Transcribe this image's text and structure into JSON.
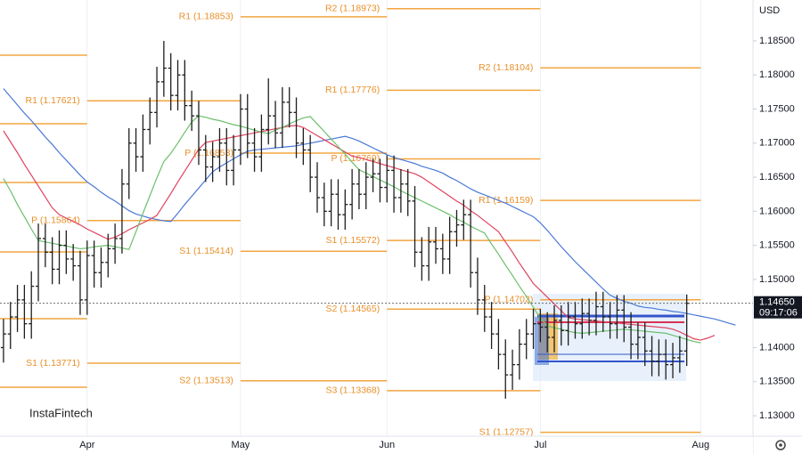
{
  "chart_data": {
    "type": "ohlc",
    "currency": "USD",
    "watermark": "InstaFintech",
    "bar_color": "#1e1e1e",
    "pivot_color": "#f2a540",
    "pivot_label_color": "#e8902a",
    "grid": true,
    "categories": [
      null,
      null,
      null,
      null,
      null,
      null,
      null,
      null,
      null,
      null,
      null,
      null,
      "Apr",
      null,
      null,
      null,
      null,
      null,
      null,
      null,
      null,
      null,
      null,
      null,
      null,
      null,
      null,
      null,
      null,
      null,
      null,
      null,
      null,
      null,
      "May",
      null,
      null,
      null,
      null,
      null,
      null,
      null,
      null,
      null,
      null,
      null,
      null,
      null,
      null,
      null,
      null,
      null,
      null,
      null,
      null,
      "Jun",
      null,
      null,
      null,
      null,
      null,
      null,
      null,
      null,
      null,
      null,
      null,
      null,
      null,
      null,
      null,
      null,
      null,
      null,
      null,
      null,
      null,
      "Jul",
      null,
      null,
      null,
      null,
      null,
      null,
      null,
      null,
      null,
      null,
      null,
      null,
      null,
      null,
      null,
      null,
      null,
      null,
      null,
      null,
      null,
      null,
      "Aug",
      null,
      null,
      null,
      null,
      null,
      null,
      null
    ],
    "open": [
      1.14,
      1.142,
      1.1445,
      1.147,
      1.1435,
      1.149,
      1.156,
      1.154,
      1.1515,
      1.155,
      1.153,
      1.152,
      1.147,
      1.1535,
      1.151,
      1.1525,
      1.1545,
      1.156,
      1.164,
      1.17,
      1.168,
      1.172,
      1.1745,
      1.179,
      1.181,
      1.177,
      1.18,
      1.1755,
      1.174,
      1.169,
      1.1665,
      1.168,
      1.17,
      1.166,
      1.169,
      1.175,
      1.17,
      1.168,
      1.172,
      1.174,
      1.1715,
      1.176,
      1.1745,
      1.17,
      1.169,
      1.165,
      1.162,
      1.16,
      1.1625,
      1.1595,
      1.161,
      1.164,
      1.1625,
      1.165,
      1.1655,
      1.1635,
      1.166,
      1.162,
      1.164,
      1.1615,
      1.154,
      1.152,
      1.1555,
      1.1545,
      1.153,
      1.157,
      1.158,
      1.1595,
      1.151,
      1.147,
      1.1445,
      1.142,
      1.139,
      1.136,
      1.1375,
      1.1405,
      1.142,
      1.1435,
      1.143,
      1.1415,
      1.144,
      1.1425,
      1.1445,
      1.1435,
      1.145,
      1.144,
      1.146,
      1.1445,
      1.1435,
      1.1455,
      1.143,
      1.1405,
      1.1415,
      1.1395,
      1.138,
      1.139,
      1.1375,
      1.1385,
      1.1395,
      null,
      null,
      null,
      null,
      null,
      null,
      null,
      null,
      null
    ],
    "high": [
      1.1442,
      1.1467,
      1.1492,
      1.1492,
      1.1512,
      1.1582,
      1.1582,
      1.1562,
      1.1572,
      1.1572,
      1.1552,
      1.1542,
      1.1557,
      1.1557,
      1.1547,
      1.1567,
      1.1582,
      1.1662,
      1.1722,
      1.1722,
      1.1742,
      1.1767,
      1.1812,
      1.185,
      1.1832,
      1.1822,
      1.1822,
      1.1777,
      1.1762,
      1.1712,
      1.1702,
      1.1722,
      1.1722,
      1.1712,
      1.1772,
      1.1772,
      1.1722,
      1.1742,
      1.1795,
      1.1762,
      1.1782,
      1.1782,
      1.1767,
      1.1722,
      1.1712,
      1.1672,
      1.1642,
      1.1647,
      1.1647,
      1.1632,
      1.1662,
      1.1662,
      1.1672,
      1.1677,
      1.1677,
      1.1682,
      1.1682,
      1.1662,
      1.1662,
      1.1637,
      1.1562,
      1.1577,
      1.1577,
      1.1567,
      1.1592,
      1.1602,
      1.1617,
      1.1617,
      1.1532,
      1.1492,
      1.1467,
      1.1442,
      1.1412,
      1.1397,
      1.1427,
      1.1442,
      1.1457,
      1.1457,
      1.1452,
      1.1462,
      1.1462,
      1.1467,
      1.1467,
      1.1472,
      1.1472,
      1.1482,
      1.1482,
      1.1467,
      1.1477,
      1.1477,
      1.1452,
      1.1437,
      1.1437,
      1.1417,
      1.1412,
      1.1412,
      1.1407,
      1.1417,
      1.1478,
      null,
      null,
      null,
      null,
      null,
      null,
      null,
      null,
      null
    ],
    "low": [
      1.1378,
      1.1398,
      1.1423,
      1.1413,
      1.1413,
      1.1468,
      1.1518,
      1.1493,
      1.1493,
      1.1508,
      1.1498,
      1.1448,
      1.1448,
      1.1488,
      1.1488,
      1.1503,
      1.1523,
      1.1538,
      1.1618,
      1.1658,
      1.1658,
      1.1698,
      1.1723,
      1.1768,
      1.1748,
      1.1748,
      1.1733,
      1.1718,
      1.1668,
      1.1643,
      1.1643,
      1.1658,
      1.1638,
      1.1638,
      1.1668,
      1.1678,
      1.1658,
      1.1658,
      1.1698,
      1.1693,
      1.1693,
      1.1723,
      1.1678,
      1.1668,
      1.1628,
      1.1598,
      1.1578,
      1.1578,
      1.1573,
      1.1573,
      1.1588,
      1.1603,
      1.1603,
      1.1628,
      1.1613,
      1.1613,
      1.1598,
      1.1598,
      1.1593,
      1.1518,
      1.1498,
      1.1498,
      1.1523,
      1.1508,
      1.1508,
      1.1548,
      1.1558,
      1.1488,
      1.1448,
      1.1423,
      1.1398,
      1.1368,
      1.1325,
      1.1338,
      1.1353,
      1.1383,
      1.1398,
      1.1408,
      1.1393,
      1.1393,
      1.1403,
      1.1403,
      1.1413,
      1.1413,
      1.1418,
      1.1418,
      1.1423,
      1.1413,
      1.1413,
      1.1408,
      1.1383,
      1.1383,
      1.1373,
      1.1358,
      1.1358,
      1.1353,
      1.1355,
      1.1363,
      1.1373,
      null,
      null,
      null,
      null,
      null,
      null,
      null,
      null,
      null
    ],
    "close": [
      1.142,
      1.1445,
      1.147,
      1.1435,
      1.149,
      1.156,
      1.154,
      1.1515,
      1.155,
      1.153,
      1.152,
      1.147,
      1.1535,
      1.151,
      1.1525,
      1.1545,
      1.156,
      1.164,
      1.17,
      1.168,
      1.172,
      1.1745,
      1.179,
      1.181,
      1.177,
      1.18,
      1.1755,
      1.174,
      1.169,
      1.1665,
      1.168,
      1.17,
      1.166,
      1.169,
      1.175,
      1.17,
      1.168,
      1.172,
      1.174,
      1.1715,
      1.176,
      1.1745,
      1.17,
      1.169,
      1.165,
      1.162,
      1.16,
      1.1625,
      1.1595,
      1.161,
      1.164,
      1.1625,
      1.165,
      1.1655,
      1.1635,
      1.166,
      1.162,
      1.164,
      1.1615,
      1.154,
      1.152,
      1.1555,
      1.1545,
      1.153,
      1.157,
      1.158,
      1.1595,
      1.151,
      1.147,
      1.1445,
      1.142,
      1.139,
      1.136,
      1.1375,
      1.1405,
      1.142,
      1.1435,
      1.143,
      1.1415,
      1.144,
      1.1425,
      1.1445,
      1.1435,
      1.145,
      1.144,
      1.146,
      1.1445,
      1.1435,
      1.1455,
      1.143,
      1.1405,
      1.1415,
      1.1395,
      1.138,
      1.139,
      1.1375,
      1.1385,
      1.1395,
      1.1465,
      null,
      null,
      null,
      null,
      null,
      null,
      null,
      null,
      null
    ],
    "moving_averages": [
      {
        "color": "#4a78d6",
        "values": [
          1.178,
          1.1768,
          1.1756,
          1.1744,
          1.1733,
          1.1721,
          1.1709,
          1.1698,
          1.1686,
          1.1675,
          1.1664,
          1.1653,
          1.1643,
          1.1636,
          1.1628,
          1.1621,
          1.1615,
          1.1608,
          1.1601,
          1.1596,
          1.1593,
          1.159,
          1.1588,
          1.1586,
          1.1585,
          1.1597,
          1.161,
          1.1622,
          1.1634,
          1.1646,
          1.1658,
          1.1665,
          1.1671,
          1.1677,
          1.1683,
          1.1688,
          1.169,
          1.1691,
          1.1692,
          1.1693,
          1.1694,
          1.1695,
          1.1696,
          1.1698,
          1.17,
          1.1702,
          1.1704,
          1.1706,
          1.1708,
          1.171,
          1.1707,
          1.1703,
          1.1698,
          1.1693,
          1.1688,
          1.1683,
          1.1679,
          1.1676,
          1.1673,
          1.167,
          1.1666,
          1.1663,
          1.166,
          1.1656,
          1.165,
          1.1645,
          1.1639,
          1.1633,
          1.1628,
          1.1624,
          1.162,
          1.1616,
          1.1612,
          1.1607,
          1.1602,
          1.1597,
          1.1592,
          1.1583,
          1.1572,
          1.156,
          1.1548,
          1.1537,
          1.1526,
          1.1516,
          1.1506,
          1.1496,
          1.1486,
          1.1477,
          1.1472,
          1.1468,
          1.1465,
          1.1461,
          1.1459,
          1.1458,
          1.1456,
          1.1455,
          1.1453,
          1.1452,
          1.145,
          1.1448,
          1.1446,
          1.1444,
          1.1442,
          1.1439,
          1.1436,
          1.1433,
          null,
          null
        ]
      },
      {
        "color": "#e0435e",
        "values": [
          1.1718,
          1.1702,
          1.1686,
          1.1669,
          1.1653,
          1.1637,
          1.1621,
          1.1605,
          1.1595,
          1.159,
          1.1585,
          1.158,
          1.1574,
          1.1569,
          1.1564,
          1.1559,
          1.1562,
          1.1567,
          1.1573,
          1.1578,
          1.1583,
          1.1588,
          1.1594,
          1.161,
          1.1626,
          1.1643,
          1.1659,
          1.1675,
          1.1691,
          1.1701,
          1.1703,
          1.1705,
          1.1707,
          1.1709,
          1.1711,
          1.1713,
          1.1715,
          1.1717,
          1.1719,
          1.1721,
          1.1723,
          1.1725,
          1.1726,
          1.1723,
          1.1717,
          1.1711,
          1.1705,
          1.1699,
          1.1693,
          1.1687,
          1.1681,
          1.1679,
          1.1676,
          1.1673,
          1.167,
          1.1667,
          1.1664,
          1.1661,
          1.1658,
          1.1655,
          1.165,
          1.1643,
          1.1636,
          1.1629,
          1.1622,
          1.1615,
          1.1609,
          1.1601,
          1.1594,
          1.1586,
          1.1578,
          1.157,
          1.1555,
          1.154,
          1.1524,
          1.1509,
          1.1494,
          1.1484,
          1.1474,
          1.1464,
          1.1454,
          1.1444,
          1.1442,
          1.1441,
          1.144,
          1.1439,
          1.1438,
          1.1437,
          1.1436,
          1.1435,
          1.1434,
          1.1433,
          1.1432,
          1.1431,
          1.143,
          1.1429,
          1.1427,
          1.1423,
          1.1418,
          1.1413,
          1.1411,
          1.1414,
          1.1418,
          null,
          null,
          null,
          null,
          null
        ]
      },
      {
        "color": "#6cbf6c",
        "values": [
          1.1648,
          1.163,
          1.161,
          1.1592,
          1.1574,
          1.1557,
          1.1555,
          1.1553,
          1.1551,
          1.1549,
          1.1547,
          1.1545,
          1.1546,
          1.1548,
          1.1549,
          1.155,
          1.1548,
          1.1546,
          1.1544,
          1.157,
          1.1597,
          1.1623,
          1.1649,
          1.1673,
          1.1685,
          1.17,
          1.1716,
          1.1731,
          1.174,
          1.1738,
          1.1735,
          1.1733,
          1.173,
          1.1727,
          1.1725,
          1.1722,
          1.1719,
          1.1716,
          1.1714,
          1.1719,
          1.1723,
          1.1728,
          1.1733,
          1.1737,
          1.1739,
          1.1728,
          1.1717,
          1.1706,
          1.1695,
          1.1684,
          1.1672,
          1.1661,
          1.1656,
          1.1651,
          1.1646,
          1.1641,
          1.1636,
          1.163,
          1.1625,
          1.162,
          1.1615,
          1.161,
          1.1605,
          1.16,
          1.1595,
          1.1589,
          1.1584,
          1.1578,
          1.1573,
          1.1568,
          1.1552,
          1.1537,
          1.1521,
          1.1506,
          1.149,
          1.1475,
          1.1459,
          1.1443,
          1.1432,
          1.1429,
          1.1427,
          1.1424,
          1.1422,
          1.1421,
          1.1422,
          1.1423,
          1.1424,
          1.1425,
          1.1426,
          1.1427,
          1.1426,
          1.1425,
          1.1424,
          1.1423,
          1.1422,
          1.1421,
          1.1418,
          1.1415,
          1.1412,
          1.1409,
          1.1407,
          null,
          null,
          null,
          null,
          null,
          null,
          null
        ]
      }
    ],
    "pivots": [
      {
        "levels": [
          {
            "value": 1.18291
          },
          {
            "value": 1.17285
          },
          {
            "value": 1.16423
          },
          {
            "value": 1.15403
          },
          {
            "value": 1.14424
          },
          {
            "value": 1.13418
          }
        ]
      },
      {
        "levels": [
          {
            "value": 1.17621,
            "label": "R1 (1.17621)"
          },
          {
            "value": 1.15864,
            "label": "P (1.15864)"
          },
          {
            "value": 1.13771,
            "label": "S1 (1.13771)"
          }
        ]
      },
      {
        "levels": [
          {
            "value": 1.18853,
            "label": "R1 (1.18853)"
          },
          {
            "value": 1.16853,
            "label": "P (1.16853)"
          },
          {
            "value": 1.15414,
            "label": "S1 (1.15414)"
          },
          {
            "value": 1.13513,
            "label": "S2 (1.13513)"
          }
        ]
      },
      {
        "levels": [
          {
            "value": 1.18973,
            "label": "R2 (1.18973)"
          },
          {
            "value": 1.17776,
            "label": "R1 (1.17776)"
          },
          {
            "value": 1.16769,
            "label": "P (1.16769)"
          },
          {
            "value": 1.15572,
            "label": "S1 (1.15572)"
          },
          {
            "value": 1.14565,
            "label": "S2 (1.14565)"
          },
          {
            "value": 1.13368,
            "label": "S3 (1.13368)"
          }
        ]
      },
      {
        "levels": [
          {
            "value": 1.18104,
            "label": "R2 (1.18104)"
          },
          {
            "value": 1.16159,
            "label": "R1 (1.16159)"
          },
          {
            "value": 1.14702,
            "label": "P (1.14702)"
          },
          {
            "value": 1.12757,
            "label": "S1 (1.12757)"
          }
        ]
      }
    ],
    "last_price": {
      "value": 1.1465,
      "label": "1.14650",
      "time": "09:17:06"
    },
    "ylim": [
      1.127,
      1.191
    ],
    "yticks": [
      {
        "value": 1.13,
        "label": "1.13000"
      },
      {
        "value": 1.135,
        "label": "1.13500"
      },
      {
        "value": 1.14,
        "label": "1.14000"
      },
      {
        "value": 1.145,
        "label": "1.14500"
      },
      {
        "value": 1.15,
        "label": "1.15000"
      },
      {
        "value": 1.155,
        "label": "1.15500"
      },
      {
        "value": 1.16,
        "label": "1.16000"
      },
      {
        "value": 1.165,
        "label": "1.16500"
      },
      {
        "value": 1.17,
        "label": "1.17000"
      },
      {
        "value": 1.175,
        "label": "1.17500"
      },
      {
        "value": 1.18,
        "label": "1.18000"
      },
      {
        "value": 1.185,
        "label": "1.18500"
      }
    ]
  }
}
